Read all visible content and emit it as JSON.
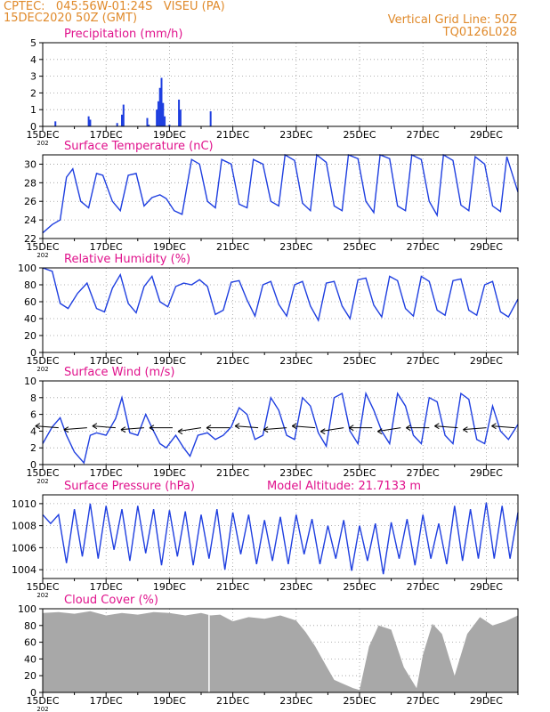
{
  "header": {
    "line1": "CPTEC:   045:56W-01:24S   VISEU (PA)",
    "line2": "15DEC2020 50Z (GMT)",
    "right1": "Vertical Grid Line: 50Z",
    "right2": "TQ0126L028"
  },
  "colors": {
    "header": "#e08a2b",
    "title": "#e0128c",
    "line": "#1f3fe0",
    "bar": "#1f3fe0",
    "cloud": "#a8a8a8",
    "grid": "#9a9a9a",
    "axis": "#000000"
  },
  "x_ticks": [
    "15DEC",
    "17DEC",
    "19DEC",
    "21DEC",
    "23DEC",
    "25DEC",
    "27DEC",
    "29DEC"
  ],
  "x_sublabel": "202",
  "chart_data": [
    {
      "type": "bar",
      "title": "Precipitation (mm/h)",
      "ylim": [
        0,
        5
      ],
      "yticks": [
        0,
        1,
        2,
        3,
        4,
        5
      ],
      "x_range_days": [
        0,
        15
      ],
      "x": [
        0.4,
        1.45,
        1.5,
        2.35,
        2.5,
        2.55,
        3.3,
        3.35,
        3.6,
        3.65,
        3.7,
        3.75,
        3.8,
        3.85,
        4.0,
        4.3,
        4.35,
        5.3
      ],
      "values": [
        0.3,
        0.6,
        0.4,
        0.2,
        0.7,
        1.3,
        0.5,
        0.1,
        1.0,
        1.5,
        2.3,
        2.9,
        1.4,
        0.6,
        0.1,
        1.6,
        1.0,
        0.9
      ]
    },
    {
      "type": "line",
      "title": "Surface Temperature (nC)",
      "ylim": [
        22,
        31
      ],
      "yticks": [
        22,
        24,
        26,
        28,
        30
      ],
      "x_range_days": [
        0,
        15
      ],
      "x": [
        0,
        0.3,
        0.55,
        0.75,
        0.95,
        1.2,
        1.45,
        1.7,
        1.9,
        2.2,
        2.45,
        2.7,
        2.95,
        3.2,
        3.45,
        3.7,
        3.9,
        4.15,
        4.4,
        4.7,
        4.95,
        5.2,
        5.45,
        5.65,
        5.95,
        6.2,
        6.45,
        6.65,
        6.95,
        7.2,
        7.45,
        7.65,
        7.95,
        8.2,
        8.45,
        8.65,
        8.95,
        9.2,
        9.45,
        9.65,
        9.95,
        10.2,
        10.45,
        10.65,
        10.95,
        11.2,
        11.45,
        11.65,
        11.95,
        12.2,
        12.45,
        12.65,
        12.95,
        13.2,
        13.45,
        13.65,
        13.95,
        14.2,
        14.45,
        14.65,
        15.0
      ],
      "values": [
        22.6,
        23.5,
        24.0,
        28.6,
        29.5,
        26.0,
        25.3,
        29.0,
        28.8,
        26.0,
        25.0,
        28.8,
        29.0,
        25.5,
        26.4,
        26.7,
        26.3,
        25.0,
        24.6,
        30.5,
        30.0,
        26.0,
        25.3,
        30.5,
        30.0,
        25.7,
        25.3,
        30.5,
        30.0,
        26.0,
        25.5,
        31.0,
        30.4,
        25.8,
        25.0,
        31.0,
        30.2,
        25.5,
        25.0,
        31.0,
        30.6,
        26.0,
        24.8,
        31.0,
        30.6,
        25.5,
        25.0,
        31.0,
        30.5,
        26.0,
        24.5,
        31.0,
        30.4,
        25.6,
        25.0,
        30.8,
        30.0,
        25.5,
        24.9,
        30.8,
        27.0
      ]
    },
    {
      "type": "line",
      "title": "Relative Humidity (%)",
      "ylim": [
        0,
        100
      ],
      "yticks": [
        0,
        20,
        40,
        60,
        80,
        100
      ],
      "x_range_days": [
        0,
        15
      ],
      "x": [
        0,
        0.3,
        0.55,
        0.8,
        1.1,
        1.4,
        1.7,
        1.95,
        2.2,
        2.45,
        2.7,
        2.95,
        3.2,
        3.45,
        3.7,
        3.95,
        4.2,
        4.45,
        4.7,
        4.95,
        5.2,
        5.45,
        5.7,
        5.95,
        6.2,
        6.45,
        6.7,
        6.95,
        7.2,
        7.45,
        7.7,
        7.95,
        8.2,
        8.45,
        8.7,
        8.95,
        9.2,
        9.45,
        9.7,
        9.95,
        10.2,
        10.45,
        10.7,
        10.95,
        11.2,
        11.45,
        11.7,
        11.95,
        12.2,
        12.45,
        12.7,
        12.95,
        13.2,
        13.45,
        13.7,
        13.95,
        14.2,
        14.45,
        14.7,
        15.0
      ],
      "values": [
        100,
        96,
        58,
        52,
        70,
        82,
        52,
        48,
        76,
        92,
        58,
        47,
        78,
        90,
        60,
        54,
        78,
        82,
        80,
        86,
        78,
        45,
        50,
        83,
        85,
        62,
        43,
        80,
        84,
        57,
        43,
        80,
        84,
        55,
        38,
        82,
        84,
        55,
        40,
        86,
        88,
        56,
        42,
        90,
        85,
        52,
        43,
        90,
        84,
        50,
        44,
        85,
        87,
        50,
        44,
        80,
        84,
        48,
        42,
        63
      ]
    },
    {
      "type": "line",
      "title": "Surface Wind (m/s)",
      "ylim": [
        0,
        10
      ],
      "yticks": [
        0,
        2,
        4,
        6,
        8,
        10
      ],
      "x_range_days": [
        0,
        15
      ],
      "x": [
        0,
        0.3,
        0.55,
        0.75,
        1.0,
        1.3,
        1.5,
        1.7,
        2.0,
        2.3,
        2.5,
        2.75,
        3.0,
        3.25,
        3.5,
        3.7,
        3.9,
        4.2,
        4.45,
        4.65,
        4.9,
        5.2,
        5.45,
        5.7,
        5.95,
        6.2,
        6.45,
        6.7,
        6.95,
        7.2,
        7.45,
        7.7,
        7.95,
        8.2,
        8.45,
        8.7,
        8.95,
        9.2,
        9.45,
        9.7,
        9.95,
        10.2,
        10.45,
        10.7,
        10.95,
        11.2,
        11.45,
        11.7,
        11.95,
        12.2,
        12.45,
        12.7,
        12.95,
        13.2,
        13.45,
        13.7,
        13.95,
        14.2,
        14.45,
        14.7,
        15.0
      ],
      "values": [
        2.5,
        4.5,
        5.6,
        3.5,
        1.5,
        0.2,
        3.5,
        3.8,
        3.5,
        5.5,
        8.0,
        3.8,
        3.5,
        6.0,
        4.0,
        2.5,
        2.0,
        3.5,
        2.0,
        1.0,
        3.5,
        3.8,
        3.0,
        3.5,
        4.5,
        6.8,
        6.0,
        3.0,
        3.5,
        8.0,
        6.5,
        3.5,
        3.0,
        8.0,
        7.0,
        3.8,
        2.2,
        8.0,
        8.5,
        4.0,
        2.5,
        8.5,
        6.5,
        4.0,
        2.5,
        8.5,
        7.0,
        3.5,
        2.5,
        8.0,
        7.5,
        3.5,
        2.5,
        8.5,
        7.8,
        3.0,
        2.5,
        7.0,
        4.0,
        3.0,
        4.8
      ]
    },
    {
      "type": "line",
      "title": "Surface Pressure (hPa)",
      "annotation": "Model Altitude: 21.7133 m",
      "ylim": [
        1003.2,
        1010.8
      ],
      "yticks": [
        1004,
        1006,
        1008,
        1010
      ],
      "x_range_days": [
        0,
        15
      ],
      "x": [
        0,
        0.25,
        0.5,
        0.75,
        1.0,
        1.25,
        1.5,
        1.75,
        2.0,
        2.25,
        2.5,
        2.75,
        3.0,
        3.25,
        3.5,
        3.75,
        4.0,
        4.25,
        4.5,
        4.75,
        5.0,
        5.25,
        5.5,
        5.75,
        6.0,
        6.25,
        6.5,
        6.75,
        7.0,
        7.25,
        7.5,
        7.75,
        8.0,
        8.25,
        8.5,
        8.75,
        9.0,
        9.25,
        9.5,
        9.75,
        10.0,
        10.25,
        10.5,
        10.75,
        11.0,
        11.25,
        11.5,
        11.75,
        12.0,
        12.25,
        12.5,
        12.75,
        13.0,
        13.25,
        13.5,
        13.75,
        14.0,
        14.25,
        14.5,
        14.75,
        15.0
      ],
      "values": [
        1009.0,
        1008.2,
        1009.0,
        1004.6,
        1009.5,
        1005.2,
        1010.0,
        1005.0,
        1009.8,
        1005.8,
        1009.5,
        1004.8,
        1009.8,
        1005.5,
        1009.5,
        1004.4,
        1009.4,
        1005.2,
        1009.3,
        1004.4,
        1009.0,
        1005.0,
        1009.5,
        1004.0,
        1009.2,
        1005.4,
        1009.0,
        1004.5,
        1008.5,
        1004.8,
        1008.8,
        1004.5,
        1009.0,
        1005.4,
        1008.6,
        1004.5,
        1008.0,
        1005.0,
        1008.5,
        1003.9,
        1008.0,
        1004.8,
        1008.2,
        1003.6,
        1008.3,
        1005.0,
        1008.6,
        1004.4,
        1009.0,
        1005.0,
        1008.2,
        1004.5,
        1009.8,
        1004.8,
        1009.5,
        1005.0,
        1010.1,
        1005.0,
        1009.8,
        1005.0,
        1009.2
      ]
    },
    {
      "type": "area",
      "title": "Cloud Cover (%)",
      "ylim": [
        0,
        100
      ],
      "yticks": [
        0,
        20,
        40,
        60,
        80,
        100
      ],
      "x_range_days": [
        0,
        15
      ],
      "x": [
        0,
        0.5,
        1.0,
        1.5,
        2.0,
        2.5,
        3.0,
        3.5,
        4.0,
        4.5,
        5.0,
        5.3,
        5.6,
        6.0,
        6.5,
        7.0,
        7.5,
        8.0,
        8.3,
        8.6,
        8.9,
        9.2,
        9.5,
        9.8,
        10.0,
        10.3,
        10.6,
        11.0,
        11.4,
        11.8,
        12.0,
        12.3,
        12.6,
        13.0,
        13.4,
        13.8,
        14.2,
        14.6,
        15.0
      ],
      "values": [
        95,
        96,
        94,
        97,
        92,
        95,
        93,
        96,
        95,
        92,
        95,
        92,
        93,
        85,
        90,
        88,
        92,
        86,
        72,
        55,
        35,
        15,
        10,
        5,
        3,
        55,
        80,
        75,
        30,
        5,
        45,
        82,
        70,
        20,
        70,
        90,
        80,
        85,
        92
      ]
    }
  ]
}
